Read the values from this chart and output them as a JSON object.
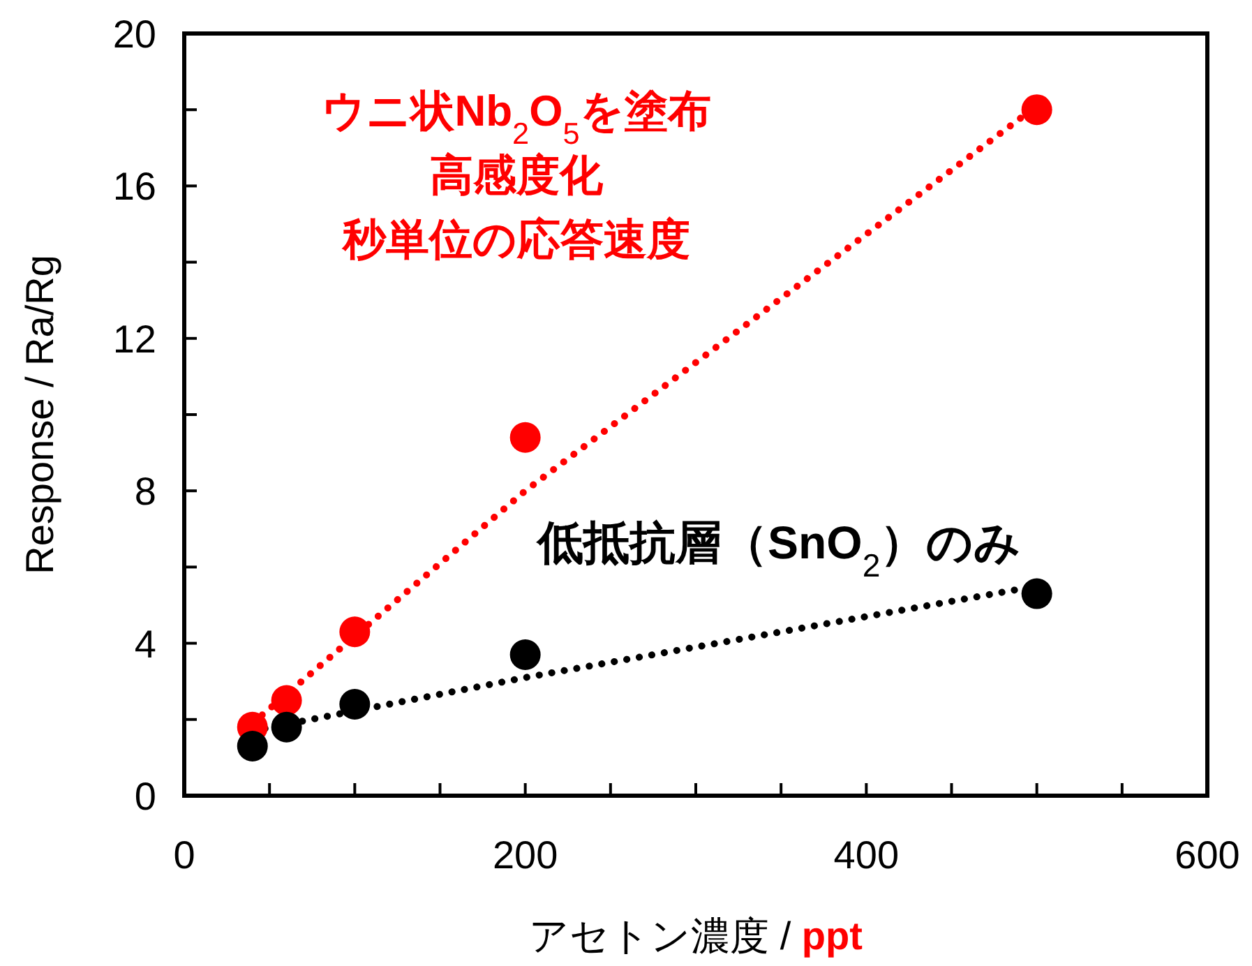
{
  "chart_data": {
    "type": "scatter",
    "xlabel": "アセトン濃度  / ppt",
    "ylabel": "Response / Ra/Rg",
    "xlim": [
      0,
      600
    ],
    "ylim": [
      0,
      20
    ],
    "xticks": [
      0,
      {
        "value": 50,
        "label": null
      },
      {
        "value": 100,
        "label": null
      },
      {
        "value": 150,
        "label": null
      },
      200,
      {
        "value": 250,
        "label": null
      },
      {
        "value": 300,
        "label": null
      },
      {
        "value": 350,
        "label": null
      },
      400,
      {
        "value": 450,
        "label": null
      },
      {
        "value": 500,
        "label": null
      },
      {
        "value": 550,
        "label": null
      },
      600
    ],
    "yticks": [
      0,
      {
        "value": 2,
        "label": null
      },
      4,
      {
        "value": 6,
        "label": null
      },
      8,
      {
        "value": 10,
        "label": null
      },
      12,
      {
        "value": 14,
        "label": null
      },
      16,
      {
        "value": 18,
        "label": null
      },
      20
    ],
    "grid": false,
    "marker": "circle",
    "series": [
      {
        "type": "line",
        "color": "#ff0000",
        "x": [
          40,
          200,
          500
        ],
        "values": [
          1.9,
          8.0,
          18.1
        ],
        "line_style": "dotted",
        "marker": "none"
      },
      {
        "type": "line",
        "color": "#000000",
        "x": [
          40,
          200,
          500
        ],
        "values": [
          1.7,
          3.1,
          5.5
        ],
        "line_style": "dotted",
        "marker": "none"
      },
      {
        "name": "ウニ状Nb$_{2}$O$_{5}$を塗布",
        "color": "#ff0000",
        "x": [
          40,
          60,
          100,
          200,
          500
        ],
        "values": [
          1.8,
          2.5,
          4.3,
          9.4,
          18.0
        ]
      },
      {
        "name": "低抵抗層（SnO$_{2}$）のみ",
        "color": "#000000",
        "x": [
          40,
          60,
          100,
          200,
          500
        ],
        "values": [
          1.3,
          1.8,
          2.4,
          3.7,
          5.3
        ]
      }
    ],
    "annotations": [
      "高感度化",
      "秒単位の応答速度"
    ]
  }
}
